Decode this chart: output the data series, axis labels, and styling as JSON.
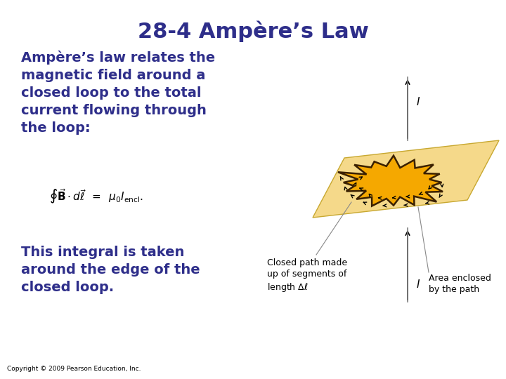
{
  "title": "28-4 Ampère’s Law",
  "title_color": "#2e2e8a",
  "title_fontsize": 22,
  "body_color": "#2e2e8a",
  "body_fontsize": 14,
  "para1": "Ampère’s law relates the\nmagnetic field around a\nclosed loop to the total\ncurrent flowing through\nthe loop:",
  "formula": "$\\oint \\vec{\\mathbf{B}} \\cdot d\\vec{\\ell}\\;\\; = \\;\\; \\mu_0 I_{\\mathrm{encl}}.$",
  "para2": "This integral is taken\naround the edge of the\nclosed loop.",
  "copyright": "Copyright © 2009 Pearson Education, Inc.",
  "bg_color": "#ffffff",
  "plane_color": "#f5d98a",
  "plane_edge_color": "#c8a830",
  "blob_color": "#f5a800",
  "blob_edge_color": "#3a2000",
  "label_color": "#000000",
  "label_fontsize": 9,
  "arrow_color": "#666666",
  "I_label_fontsize": 11
}
